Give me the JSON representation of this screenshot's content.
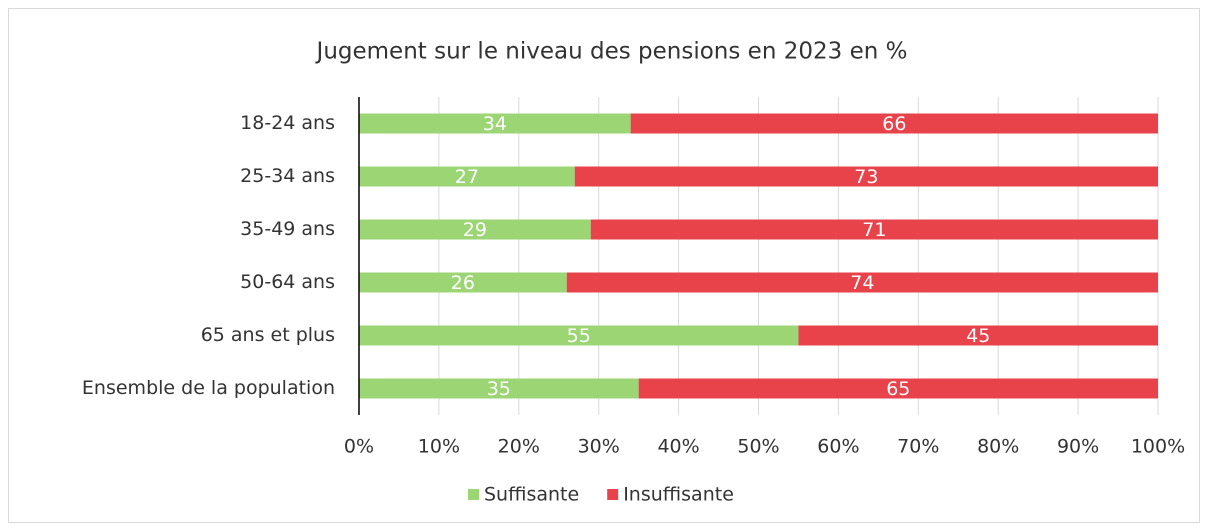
{
  "chart_data": {
    "type": "stacked_bar_horizontal",
    "title": "Jugement sur le niveau des pensions en 2023 en %",
    "categories": [
      "18-24 ans",
      "25-34 ans",
      "35-49 ans",
      "50-64 ans",
      "65 ans et plus",
      "Ensemble de la population"
    ],
    "series": [
      {
        "name": "Suffisante",
        "color": "#9cd674",
        "values": [
          34,
          27,
          29,
          26,
          55,
          35
        ]
      },
      {
        "name": "Insuffisante",
        "color": "#e8434b",
        "values": [
          66,
          73,
          71,
          74,
          45,
          65
        ]
      }
    ],
    "xlim": [
      0,
      100
    ],
    "xticks": [
      {
        "value": 0,
        "label": "0%"
      },
      {
        "value": 10,
        "label": "10%"
      },
      {
        "value": 20,
        "label": "20%"
      },
      {
        "value": 30,
        "label": "30%"
      },
      {
        "value": 40,
        "label": "40%"
      },
      {
        "value": 50,
        "label": "50%"
      },
      {
        "value": 60,
        "label": "60%"
      },
      {
        "value": 70,
        "label": "70%"
      },
      {
        "value": 80,
        "label": "80%"
      },
      {
        "value": 90,
        "label": "90%"
      },
      {
        "value": 100,
        "label": "100%"
      }
    ],
    "grid": true
  }
}
